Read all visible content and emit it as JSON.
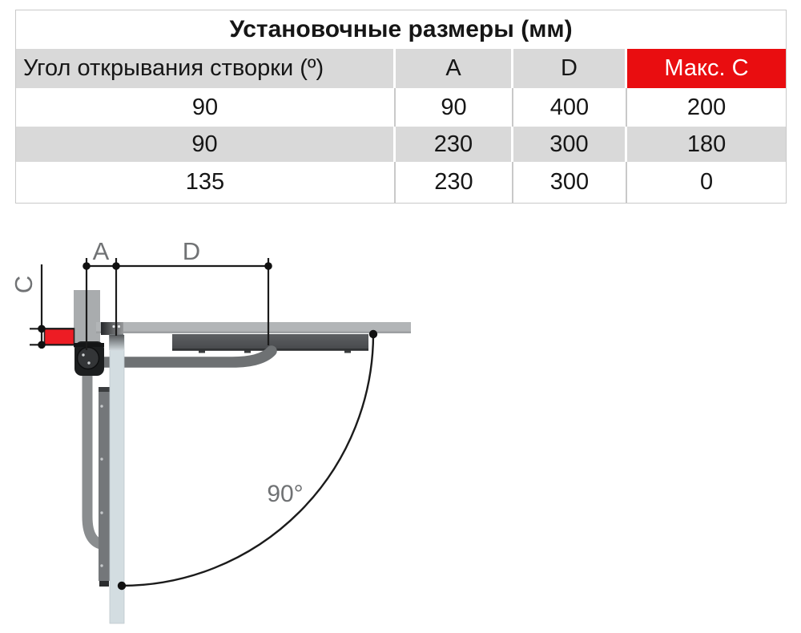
{
  "table": {
    "title": "Установочные размеры (мм)",
    "header": {
      "col_angle": "Угол открывания створки (º)",
      "col_a": "A",
      "col_d": "D",
      "col_max_c": "Макс. C"
    },
    "rows": [
      {
        "angle": "90",
        "a": "90",
        "d": "400",
        "max_c": "200"
      },
      {
        "angle": "90",
        "a": "230",
        "d": "300",
        "max_c": "180"
      },
      {
        "angle": "135",
        "a": "230",
        "d": "300",
        "max_c": "0"
      }
    ],
    "colors": {
      "header_bg": "#d9d9d9",
      "alt_row_bg": "#d9d9d9",
      "accent_red": "#e90d10",
      "header_red_text": "#ffffff"
    }
  },
  "diagram": {
    "dim_a_label": "A",
    "dim_d_label": "D",
    "dim_c_label": "C",
    "angle_label": "90°",
    "colors": {
      "red_bracket": "#ed1c24",
      "post": "#a9acae",
      "gate_leaf_closed": "#b2b5b7",
      "actuator": "#54565a",
      "arm": "#6e7173",
      "gate_leaf_open": "#d3dde1",
      "actuator_open": "#74777a",
      "arm_open": "#8a8d8f",
      "dim_lines": "#1b1b1b",
      "labels": "#707274"
    }
  }
}
